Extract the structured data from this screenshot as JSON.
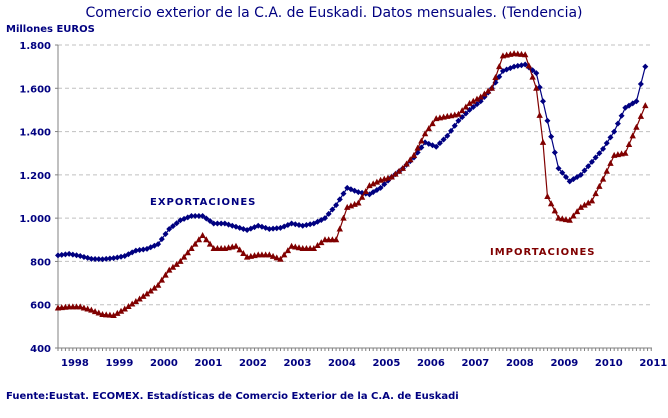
{
  "title": "Comercio exterior de la C.A. de Euskadi. Datos mensuales. (Tendencia)",
  "y_unit": "Millones EUROS",
  "source": "Fuente:Eustat. ECOMEX. Estadísticas de Comercio Exterior de la C.A. de Euskadi",
  "colors": {
    "exports": "#000080",
    "imports": "#800000",
    "grid": "#c0c0c0",
    "axis": "#808080"
  },
  "labels": {
    "exports": "EXPORTACIONES",
    "imports": "IMPORTACIONES"
  },
  "chart_data": {
    "type": "line",
    "title": "Comercio exterior de la C.A. de Euskadi. Datos mensuales. (Tendencia)",
    "xlabel": "",
    "ylabel": "Millones EUROS",
    "ylim": [
      400,
      1800
    ],
    "yticks": [
      "400",
      "600",
      "800",
      "1.000",
      "1.200",
      "1.400",
      "1.600",
      "1.800"
    ],
    "ytick_values": [
      400,
      600,
      800,
      1000,
      1200,
      1400,
      1600,
      1800
    ],
    "xticks": [
      "1998",
      "1999",
      "2000",
      "2001",
      "2002",
      "2003",
      "2004",
      "2005",
      "2006",
      "2007",
      "2008",
      "2009",
      "2010",
      "2011"
    ],
    "grid": true,
    "legend": "inline labels",
    "x": [
      1998.0,
      1998.25,
      1998.5,
      1998.75,
      1999.0,
      1999.25,
      1999.5,
      1999.75,
      2000.0,
      2000.25,
      2000.5,
      2000.75,
      2001.0,
      2001.25,
      2001.5,
      2001.75,
      2002.0,
      2002.25,
      2002.5,
      2002.75,
      2003.0,
      2003.25,
      2003.5,
      2003.75,
      2004.0,
      2004.25,
      2004.5,
      2004.75,
      2005.0,
      2005.25,
      2005.5,
      2005.75,
      2006.0,
      2006.25,
      2006.5,
      2006.75,
      2007.0,
      2007.25,
      2007.5,
      2007.75,
      2008.0,
      2008.25,
      2008.5,
      2008.75,
      2008.9,
      2009.0,
      2009.25,
      2009.5,
      2009.75,
      2010.0,
      2010.25,
      2010.5,
      2010.75,
      2011.0,
      2011.2
    ],
    "series": [
      {
        "name": "EXPORTACIONES",
        "values": [
          828,
          835,
          825,
          812,
          810,
          815,
          825,
          850,
          858,
          880,
          950,
          990,
          1010,
          1010,
          975,
          975,
          960,
          945,
          965,
          950,
          955,
          975,
          965,
          975,
          1000,
          1060,
          1140,
          1120,
          1110,
          1140,
          1190,
          1230,
          1280,
          1350,
          1330,
          1380,
          1450,
          1500,
          1540,
          1600,
          1680,
          1700,
          1710,
          1670,
          1540,
          1450,
          1230,
          1170,
          1200,
          1260,
          1320,
          1400,
          1510,
          1540,
          1700
        ]
      },
      {
        "name": "IMPORTACIONES",
        "values": [
          585,
          590,
          590,
          575,
          555,
          550,
          580,
          615,
          650,
          690,
          760,
          800,
          860,
          920,
          860,
          860,
          870,
          820,
          830,
          830,
          810,
          870,
          860,
          860,
          900,
          900,
          1050,
          1070,
          1150,
          1175,
          1190,
          1230,
          1290,
          1390,
          1460,
          1470,
          1480,
          1530,
          1560,
          1600,
          1750,
          1760,
          1755,
          1600,
          1350,
          1100,
          1000,
          990,
          1050,
          1080,
          1180,
          1290,
          1300,
          1420,
          1520
        ]
      }
    ]
  }
}
